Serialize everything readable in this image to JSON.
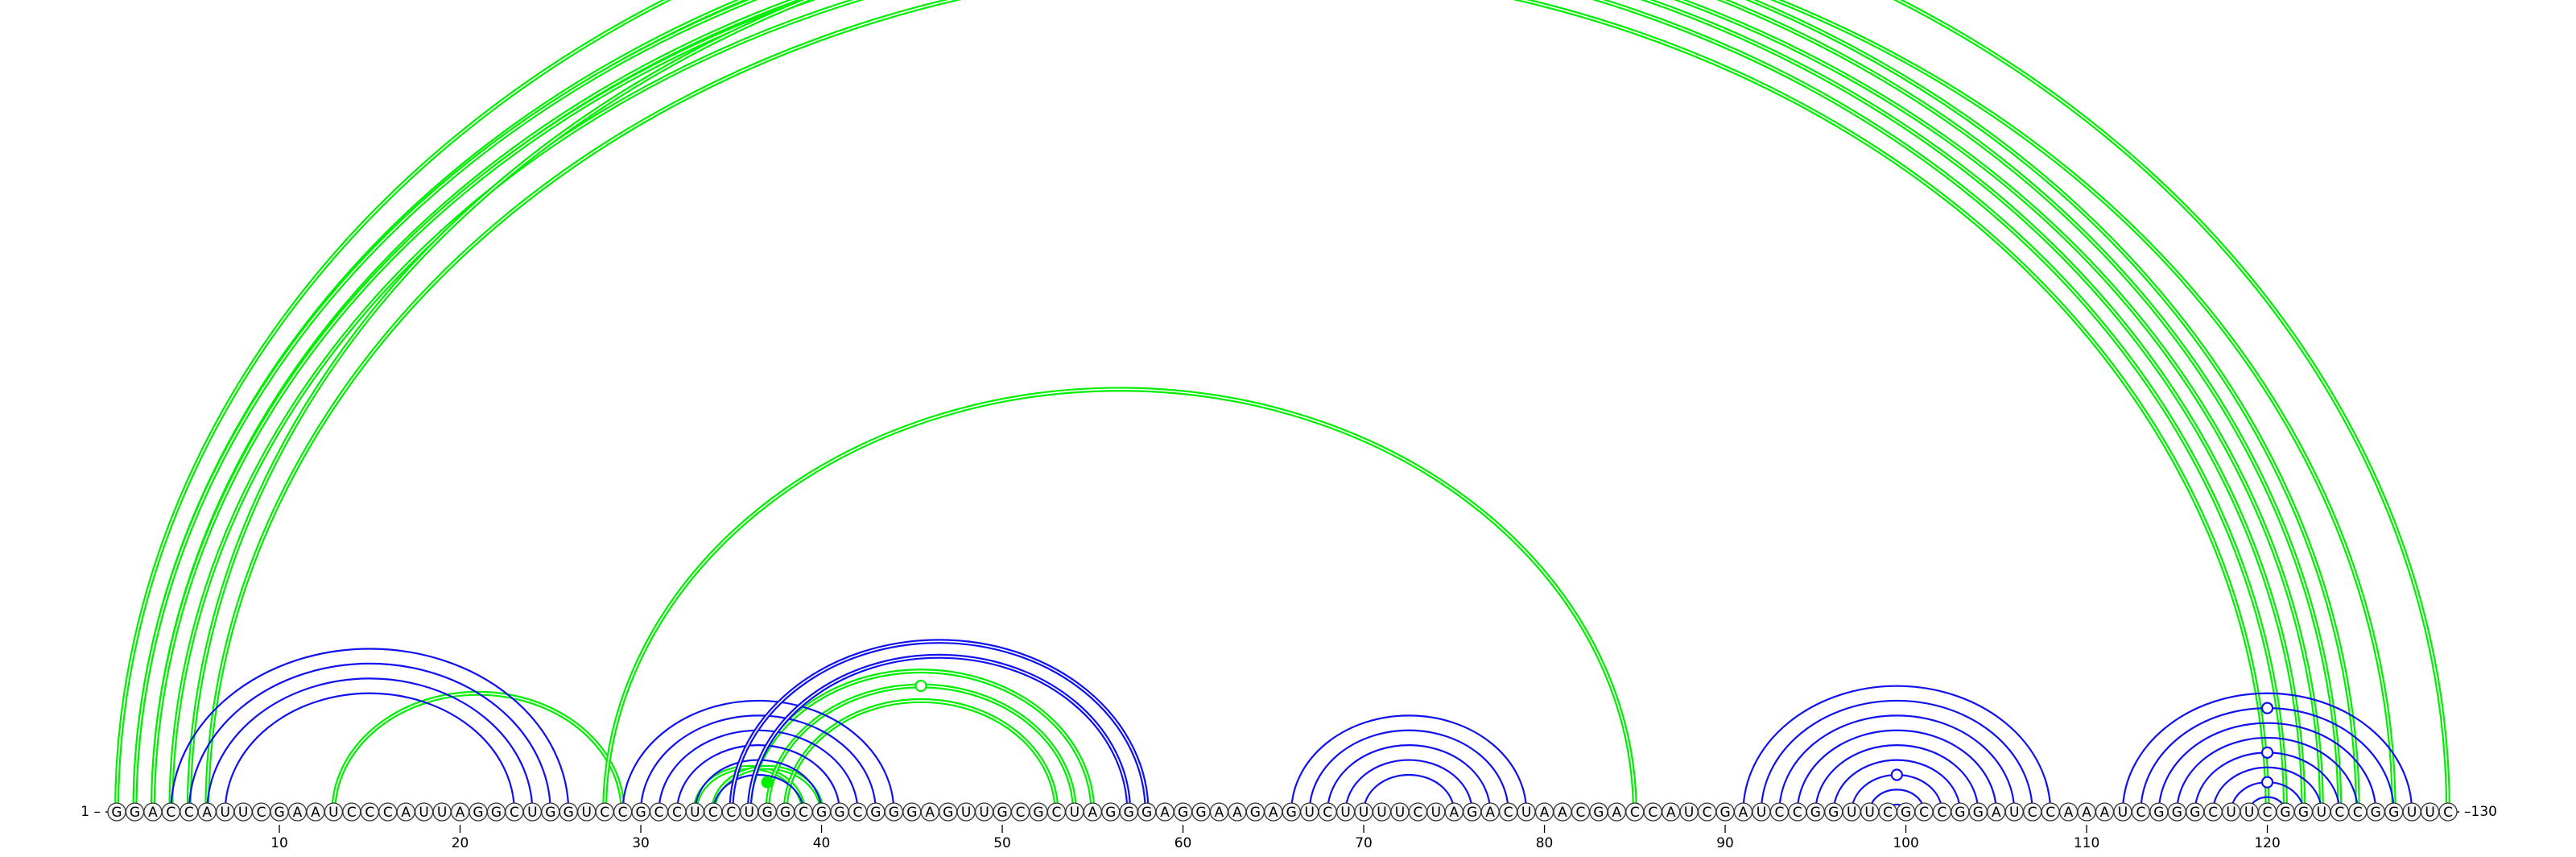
{
  "sequence": "GGACCAUUCGAAUCCCAUUAGGCUGGUCCGCCUCCUGGCGGCGGGAGUUGCGCUAGGGAGGAAGAGUCUUUUCUAGACUAACGACCAUCGAUCCGGUUCGCCGGAUCCAAAUCGGGCUUCGGUCCGGUUC",
  "labels": {
    "start": "1 –",
    "end": "–130"
  },
  "ticks": [
    "10",
    "20",
    "30",
    "40",
    "50",
    "60",
    "70",
    "80",
    "90",
    "100",
    "110",
    "120"
  ],
  "colors": {
    "blue": "#1010f0",
    "green": "#00ee00",
    "text": "#000000"
  },
  "arcs": [
    {
      "i": 13,
      "j": 29,
      "color": "green",
      "w": 2
    },
    {
      "i": 33,
      "j": 39,
      "color": "green",
      "w": 2
    },
    {
      "i": 34,
      "j": 40,
      "color": "green",
      "w": 2
    },
    {
      "i": 36,
      "j": 55,
      "color": "green",
      "w": 2
    },
    {
      "i": 37,
      "j": 54,
      "color": "green",
      "w": 2
    },
    {
      "i": 38,
      "j": 53,
      "color": "green",
      "w": 2
    },
    {
      "i": 28,
      "j": 85,
      "color": "green",
      "w": 2
    },
    {
      "i": 1,
      "j": 130,
      "color": "green",
      "w": 2
    },
    {
      "i": 2,
      "j": 125,
      "color": "green",
      "w": 2
    },
    {
      "i": 2,
      "j": 124,
      "color": "green",
      "w": 2
    },
    {
      "i": 3,
      "j": 123,
      "color": "green",
      "w": 2
    },
    {
      "i": 3,
      "j": 122,
      "color": "green",
      "w": 2
    },
    {
      "i": 4,
      "j": 121,
      "color": "green",
      "w": 2
    },
    {
      "i": 5,
      "j": 127,
      "color": "green",
      "w": 2
    },
    {
      "i": 6,
      "j": 120,
      "color": "green",
      "w": 2
    },
    {
      "i": 4,
      "j": 26,
      "color": "blue",
      "w": 1
    },
    {
      "i": 5,
      "j": 25,
      "color": "blue",
      "w": 1
    },
    {
      "i": 6,
      "j": 24,
      "color": "blue",
      "w": 1
    },
    {
      "i": 7,
      "j": 23,
      "color": "blue",
      "w": 1
    },
    {
      "i": 29,
      "j": 44,
      "color": "blue",
      "w": 1
    },
    {
      "i": 30,
      "j": 43,
      "color": "blue",
      "w": 1
    },
    {
      "i": 31,
      "j": 42,
      "color": "blue",
      "w": 1
    },
    {
      "i": 32,
      "j": 41,
      "color": "blue",
      "w": 1
    },
    {
      "i": 33,
      "j": 40,
      "color": "blue",
      "w": 1
    },
    {
      "i": 34,
      "j": 39,
      "color": "blue",
      "w": 1
    },
    {
      "i": 35,
      "j": 58,
      "color": "blue",
      "w": 2
    },
    {
      "i": 36,
      "j": 57,
      "color": "blue",
      "w": 2
    },
    {
      "i": 66,
      "j": 79,
      "color": "blue",
      "w": 1
    },
    {
      "i": 67,
      "j": 78,
      "color": "blue",
      "w": 1
    },
    {
      "i": 68,
      "j": 77,
      "color": "blue",
      "w": 1
    },
    {
      "i": 69,
      "j": 76,
      "color": "blue",
      "w": 1
    },
    {
      "i": 70,
      "j": 75,
      "color": "blue",
      "w": 1
    },
    {
      "i": 91,
      "j": 108,
      "color": "blue",
      "w": 1
    },
    {
      "i": 92,
      "j": 107,
      "color": "blue",
      "w": 1
    },
    {
      "i": 93,
      "j": 106,
      "color": "blue",
      "w": 1
    },
    {
      "i": 94,
      "j": 105,
      "color": "blue",
      "w": 1
    },
    {
      "i": 95,
      "j": 104,
      "color": "blue",
      "w": 1
    },
    {
      "i": 96,
      "j": 103,
      "color": "blue",
      "w": 1
    },
    {
      "i": 97,
      "j": 102,
      "color": "blue",
      "w": 1
    },
    {
      "i": 98,
      "j": 101,
      "color": "blue",
      "w": 1
    },
    {
      "i": 99,
      "j": 100,
      "color": "blue",
      "w": 1
    },
    {
      "i": 112,
      "j": 128,
      "color": "blue",
      "w": 1
    },
    {
      "i": 113,
      "j": 127,
      "color": "blue",
      "w": 1
    },
    {
      "i": 114,
      "j": 126,
      "color": "blue",
      "w": 1
    },
    {
      "i": 115,
      "j": 125,
      "color": "blue",
      "w": 1
    },
    {
      "i": 116,
      "j": 124,
      "color": "blue",
      "w": 1
    },
    {
      "i": 117,
      "j": 123,
      "color": "blue",
      "w": 1
    },
    {
      "i": 118,
      "j": 122,
      "color": "blue",
      "w": 1
    },
    {
      "i": 119,
      "j": 121,
      "color": "blue",
      "w": 1
    }
  ],
  "markers": [
    {
      "i": 35,
      "j": 36,
      "color": "green",
      "fill": true
    },
    {
      "i": 66,
      "j": 66,
      "color": "green",
      "fill": false
    },
    {
      "i": 46,
      "j": 46,
      "color": "green",
      "fill": false
    },
    {
      "i": 98,
      "j": 99,
      "color": "blue",
      "fill": false
    },
    {
      "i": 120,
      "j": 120,
      "color": "blue",
      "fill": false
    },
    {
      "i": 120,
      "j": 120,
      "color": "blue",
      "fill": false
    },
    {
      "i": 120,
      "j": 120,
      "color": "blue",
      "fill": false
    }
  ]
}
